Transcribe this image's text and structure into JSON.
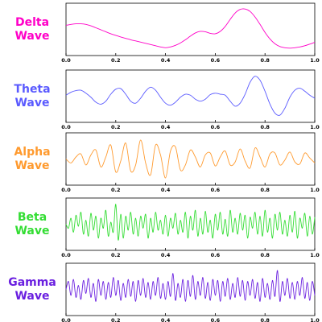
{
  "chart_data": [
    {
      "type": "line",
      "name_line1": "Delta",
      "name_line2": "Wave",
      "color": "#ff00c8",
      "xlim": [
        0.0,
        1.0
      ],
      "ylim": [
        -1.15,
        1.15
      ],
      "xticks": [
        "0.0",
        "0.2",
        "0.4",
        "0.6",
        "0.8",
        "1.0"
      ],
      "x": [
        0.0,
        0.02,
        0.04,
        0.06,
        0.08,
        0.1,
        0.12,
        0.14,
        0.16,
        0.18,
        0.2,
        0.22,
        0.24,
        0.26,
        0.28,
        0.3,
        0.32,
        0.34,
        0.36,
        0.38,
        0.4,
        0.42,
        0.44,
        0.46,
        0.48,
        0.5,
        0.52,
        0.54,
        0.56,
        0.58,
        0.6,
        0.62,
        0.64,
        0.66,
        0.68,
        0.7,
        0.72,
        0.74,
        0.76,
        0.78,
        0.8,
        0.82,
        0.84,
        0.86,
        0.88,
        0.9,
        0.92,
        0.94,
        0.96,
        0.98,
        1.0
      ],
      "y": [
        0.2,
        0.25,
        0.28,
        0.28,
        0.25,
        0.18,
        0.08,
        -0.02,
        -0.12,
        -0.22,
        -0.3,
        -0.38,
        -0.45,
        -0.52,
        -0.58,
        -0.64,
        -0.7,
        -0.76,
        -0.82,
        -0.88,
        -0.92,
        -0.88,
        -0.8,
        -0.68,
        -0.52,
        -0.34,
        -0.18,
        -0.1,
        -0.12,
        -0.2,
        -0.22,
        -0.1,
        0.15,
        0.5,
        0.82,
        1.0,
        1.02,
        0.9,
        0.62,
        0.25,
        -0.15,
        -0.48,
        -0.72,
        -0.86,
        -0.92,
        -0.94,
        -0.92,
        -0.88,
        -0.82,
        -0.74,
        -0.65
      ]
    },
    {
      "type": "line",
      "name_line1": "Theta",
      "name_line2": "Wave",
      "color": "#5a5aff",
      "xlim": [
        0.0,
        1.0
      ],
      "ylim": [
        -1.15,
        1.15
      ],
      "xticks": [
        "0.0",
        "0.2",
        "0.4",
        "0.6",
        "0.8",
        "1.0"
      ],
      "x": [
        0.0,
        0.02,
        0.04,
        0.06,
        0.08,
        0.1,
        0.12,
        0.14,
        0.16,
        0.18,
        0.2,
        0.22,
        0.24,
        0.26,
        0.28,
        0.3,
        0.32,
        0.34,
        0.36,
        0.38,
        0.4,
        0.42,
        0.44,
        0.46,
        0.48,
        0.5,
        0.52,
        0.54,
        0.56,
        0.58,
        0.6,
        0.62,
        0.64,
        0.66,
        0.68,
        0.7,
        0.72,
        0.74,
        0.76,
        0.78,
        0.8,
        0.82,
        0.84,
        0.86,
        0.88,
        0.9,
        0.92,
        0.94,
        0.96,
        0.98,
        1.0
      ],
      "y": [
        0.05,
        0.2,
        0.28,
        0.3,
        0.15,
        -0.05,
        -0.3,
        -0.4,
        -0.25,
        0.1,
        0.35,
        0.38,
        0.1,
        -0.25,
        -0.35,
        -0.1,
        0.25,
        0.45,
        0.3,
        -0.05,
        -0.35,
        -0.45,
        -0.3,
        -0.05,
        0.1,
        0.05,
        -0.15,
        -0.25,
        -0.15,
        0.08,
        0.15,
        0.1,
        0.05,
        -0.25,
        -0.5,
        -0.35,
        0.1,
        0.7,
        1.0,
        0.8,
        0.25,
        -0.4,
        -0.85,
        -0.95,
        -0.6,
        -0.05,
        0.3,
        0.4,
        0.25,
        0.05,
        -0.1
      ]
    },
    {
      "type": "line",
      "name_line1": "Alpha",
      "name_line2": "Wave",
      "color": "#ff9a2e",
      "xlim": [
        0.0,
        1.0
      ],
      "ylim": [
        -1.15,
        1.15
      ],
      "xticks": [
        "0.0",
        "0.2",
        "0.4",
        "0.6",
        "0.8",
        "1.0"
      ],
      "x": [
        0.0,
        0.02,
        0.04,
        0.06,
        0.08,
        0.1,
        0.12,
        0.14,
        0.16,
        0.18,
        0.2,
        0.22,
        0.24,
        0.26,
        0.28,
        0.3,
        0.32,
        0.34,
        0.36,
        0.38,
        0.4,
        0.42,
        0.44,
        0.46,
        0.48,
        0.5,
        0.52,
        0.54,
        0.56,
        0.58,
        0.6,
        0.62,
        0.64,
        0.66,
        0.68,
        0.7,
        0.72,
        0.74,
        0.76,
        0.78,
        0.8,
        0.82,
        0.84,
        0.86,
        0.88,
        0.9,
        0.92,
        0.94,
        0.96,
        0.98,
        1.0
      ],
      "y": [
        0.0,
        -0.2,
        0.1,
        0.25,
        -0.3,
        0.2,
        0.45,
        -0.4,
        0.1,
        0.7,
        -0.65,
        -0.1,
        0.8,
        -0.6,
        -0.3,
        0.95,
        -0.2,
        -0.8,
        0.7,
        0.2,
        -0.95,
        0.4,
        0.6,
        -0.55,
        -0.3,
        0.45,
        0.1,
        -0.4,
        0.2,
        0.3,
        -0.35,
        0.1,
        0.4,
        -0.3,
        -0.15,
        0.5,
        -0.1,
        -0.45,
        0.55,
        0.1,
        -0.4,
        0.25,
        0.3,
        -0.3,
        -0.05,
        0.35,
        -0.15,
        -0.25,
        0.3,
        0.05,
        -0.2
      ]
    },
    {
      "type": "line",
      "name_line1": "Beta",
      "name_line2": "Wave",
      "color": "#33dd33",
      "xlim": [
        0.0,
        1.0
      ],
      "ylim": [
        -1.15,
        1.15
      ],
      "xticks": [
        "0.0",
        "0.2",
        "0.4",
        "0.6",
        "0.8",
        "1.0"
      ],
      "x": [
        0.0,
        0.01,
        0.02,
        0.03,
        0.04,
        0.05,
        0.06,
        0.07,
        0.08,
        0.09,
        0.1,
        0.11,
        0.12,
        0.13,
        0.14,
        0.15,
        0.16,
        0.17,
        0.18,
        0.19,
        0.2,
        0.21,
        0.22,
        0.23,
        0.24,
        0.25,
        0.26,
        0.27,
        0.28,
        0.29,
        0.3,
        0.31,
        0.32,
        0.33,
        0.34,
        0.35,
        0.36,
        0.37,
        0.38,
        0.39,
        0.4,
        0.41,
        0.42,
        0.43,
        0.44,
        0.45,
        0.46,
        0.47,
        0.48,
        0.49,
        0.5,
        0.51,
        0.52,
        0.53,
        0.54,
        0.55,
        0.56,
        0.57,
        0.58,
        0.59,
        0.6,
        0.61,
        0.62,
        0.63,
        0.64,
        0.65,
        0.66,
        0.67,
        0.68,
        0.69,
        0.7,
        0.71,
        0.72,
        0.73,
        0.74,
        0.75,
        0.76,
        0.77,
        0.78,
        0.79,
        0.8,
        0.81,
        0.82,
        0.83,
        0.84,
        0.85,
        0.86,
        0.87,
        0.88,
        0.89,
        0.9,
        0.91,
        0.92,
        0.93,
        0.94,
        0.95,
        0.96,
        0.97,
        0.98,
        0.99,
        1.0
      ],
      "y": [
        0.0,
        -0.2,
        0.3,
        -0.4,
        0.45,
        -0.1,
        0.6,
        -0.5,
        0.2,
        -0.6,
        0.55,
        -0.3,
        0.4,
        -0.7,
        0.3,
        -0.2,
        0.7,
        -0.6,
        0.1,
        -0.4,
        1.0,
        -0.8,
        0.5,
        -0.7,
        0.4,
        -0.3,
        0.6,
        -0.5,
        0.3,
        -0.6,
        0.4,
        -0.2,
        0.5,
        -0.7,
        0.3,
        -0.4,
        0.6,
        -0.3,
        0.2,
        -0.5,
        0.45,
        -0.6,
        0.3,
        -0.2,
        0.55,
        -0.5,
        0.2,
        -0.4,
        0.6,
        -0.7,
        0.4,
        -0.3,
        0.7,
        -0.6,
        0.3,
        -0.5,
        0.65,
        -0.4,
        0.2,
        -0.7,
        0.5,
        -0.3,
        0.6,
        -0.5,
        0.25,
        -0.6,
        0.7,
        -0.4,
        0.3,
        -0.5,
        0.55,
        -0.3,
        0.45,
        -0.7,
        0.35,
        -0.2,
        0.6,
        -0.5,
        0.4,
        -0.6,
        0.7,
        -0.4,
        0.3,
        -0.7,
        0.5,
        -0.3,
        0.6,
        -0.5,
        0.2,
        -0.6,
        0.45,
        -0.4,
        0.65,
        -0.7,
        0.3,
        -0.2,
        0.55,
        -0.6,
        0.4,
        -0.5,
        0.35
      ]
    },
    {
      "type": "line",
      "name_line1": "Gamma",
      "name_line2": "Wave",
      "color": "#6a1fe0",
      "xlim": [
        0.0,
        1.0
      ],
      "ylim": [
        -1.15,
        1.15
      ],
      "xticks": [
        "0.0",
        "0.2",
        "0.4",
        "0.6",
        "0.8",
        "1.0"
      ],
      "x": [
        0.0,
        0.01,
        0.02,
        0.03,
        0.04,
        0.05,
        0.06,
        0.07,
        0.08,
        0.09,
        0.1,
        0.11,
        0.12,
        0.13,
        0.14,
        0.15,
        0.16,
        0.17,
        0.18,
        0.19,
        0.2,
        0.21,
        0.22,
        0.23,
        0.24,
        0.25,
        0.26,
        0.27,
        0.28,
        0.29,
        0.3,
        0.31,
        0.32,
        0.33,
        0.34,
        0.35,
        0.36,
        0.37,
        0.38,
        0.39,
        0.4,
        0.41,
        0.42,
        0.43,
        0.44,
        0.45,
        0.46,
        0.47,
        0.48,
        0.49,
        0.5,
        0.51,
        0.52,
        0.53,
        0.54,
        0.55,
        0.56,
        0.57,
        0.58,
        0.59,
        0.6,
        0.61,
        0.62,
        0.63,
        0.64,
        0.65,
        0.66,
        0.67,
        0.68,
        0.69,
        0.7,
        0.71,
        0.72,
        0.73,
        0.74,
        0.75,
        0.76,
        0.77,
        0.78,
        0.79,
        0.8,
        0.81,
        0.82,
        0.83,
        0.84,
        0.85,
        0.86,
        0.87,
        0.88,
        0.89,
        0.9,
        0.91,
        0.92,
        0.93,
        0.94,
        0.95,
        0.96,
        0.97,
        0.98,
        0.99,
        1.0
      ],
      "y": [
        0.0,
        0.4,
        -0.3,
        0.5,
        -0.4,
        0.2,
        -0.5,
        0.45,
        -0.2,
        0.55,
        -0.4,
        0.3,
        -0.6,
        0.5,
        -0.3,
        0.4,
        -0.5,
        0.35,
        -0.4,
        0.6,
        -0.3,
        0.45,
        -0.55,
        0.3,
        -0.4,
        0.5,
        -0.35,
        0.4,
        -0.6,
        0.45,
        -0.3,
        0.55,
        -0.4,
        0.35,
        -0.5,
        0.4,
        -0.3,
        0.6,
        -0.45,
        0.3,
        -0.5,
        0.4,
        -0.35,
        0.8,
        -0.55,
        0.3,
        -0.4,
        0.5,
        -0.6,
        0.45,
        -0.35,
        0.7,
        -0.5,
        0.4,
        -0.3,
        0.6,
        -0.45,
        0.35,
        -0.55,
        0.5,
        -0.3,
        0.45,
        -0.6,
        0.4,
        -0.35,
        0.55,
        -0.5,
        0.3,
        -0.4,
        0.6,
        -0.35,
        0.45,
        -0.55,
        0.4,
        -0.3,
        0.5,
        -0.45,
        0.35,
        -0.6,
        0.55,
        -0.4,
        0.3,
        -0.5,
        0.45,
        -0.35,
        0.95,
        -0.6,
        0.4,
        -0.3,
        0.55,
        -0.45,
        0.35,
        -0.5,
        0.4,
        -0.3,
        0.6,
        -0.45,
        0.35,
        -0.55,
        0.4,
        -0.3
      ]
    }
  ]
}
